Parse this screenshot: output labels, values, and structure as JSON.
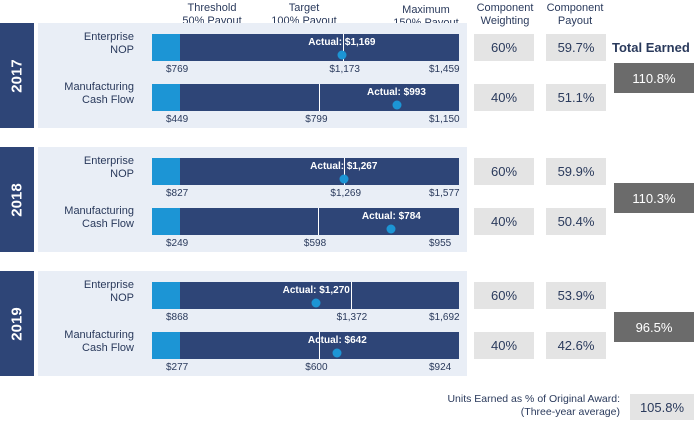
{
  "headers": {
    "threshold": "Threshold\n50% Payout",
    "target": "Target\n100% Payout",
    "maximum": "Maximum\n150% Payout",
    "weighting": "Component\nWeighting",
    "payout": "Component\nPayout",
    "total_earned": "Total Earned"
  },
  "chart_data": {
    "type": "bar",
    "years": [
      {
        "year": "2017",
        "total_earned": "110.8%",
        "rows": [
          {
            "label": "Enterprise\nNOP",
            "threshold": 769,
            "target": 1173,
            "maximum": 1459,
            "actual": 1169,
            "threshold_label": "$769",
            "target_label": "$1,173",
            "maximum_label": "$1,459",
            "actual_label": "Actual: $1,169",
            "weighting": "60%",
            "payout": "59.7%"
          },
          {
            "label": "Manufacturing\nCash Flow",
            "threshold": 449,
            "target": 799,
            "maximum": 1150,
            "actual": 993,
            "threshold_label": "$449",
            "target_label": "$799",
            "maximum_label": "$1,150",
            "actual_label": "Actual: $993",
            "weighting": "40%",
            "payout": "51.1%"
          }
        ]
      },
      {
        "year": "2018",
        "total_earned": "110.3%",
        "rows": [
          {
            "label": "Enterprise\nNOP",
            "threshold": 827,
            "target": 1269,
            "maximum": 1577,
            "actual": 1267,
            "threshold_label": "$827",
            "target_label": "$1,269",
            "maximum_label": "$1,577",
            "actual_label": "Actual: $1,267",
            "weighting": "60%",
            "payout": "59.9%"
          },
          {
            "label": "Manufacturing\nCash Flow",
            "threshold": 249,
            "target": 598,
            "maximum": 955,
            "actual": 784,
            "threshold_label": "$249",
            "target_label": "$598",
            "maximum_label": "$955",
            "actual_label": "Actual: $784",
            "weighting": "40%",
            "payout": "50.4%"
          }
        ]
      },
      {
        "year": "2019",
        "total_earned": "96.5%",
        "rows": [
          {
            "label": "Enterprise\nNOP",
            "threshold": 868,
            "target": 1372,
            "maximum": 1692,
            "actual": 1270,
            "threshold_label": "$868",
            "target_label": "$1,372",
            "maximum_label": "$1,692",
            "actual_label": "Actual: $1,270",
            "weighting": "60%",
            "payout": "53.9%"
          },
          {
            "label": "Manufacturing\nCash Flow",
            "threshold": 277,
            "target": 600,
            "maximum": 924,
            "actual": 642,
            "threshold_label": "$277",
            "target_label": "$600",
            "maximum_label": "$924",
            "actual_label": "Actual: $642",
            "weighting": "40%",
            "payout": "42.6%"
          }
        ]
      }
    ]
  },
  "footer": {
    "label": "Units Earned as % of Original Award:\n(Three-year average)",
    "value": "105.8%"
  },
  "colors": {
    "navy": "#2e4577",
    "light_blue": "#1c95d5",
    "panel": "#e9eef6",
    "box": "#e4e4e4",
    "total_box": "#6b6b6b"
  }
}
